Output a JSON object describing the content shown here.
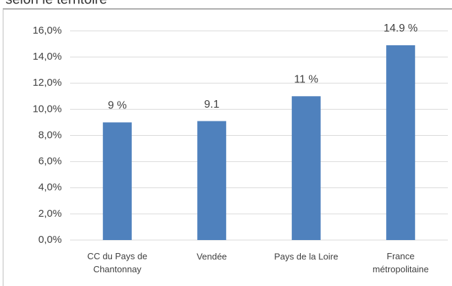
{
  "chart_data": {
    "type": "bar",
    "title": "selon le territoire",
    "categories": [
      "CC du Pays de Chantonnay",
      "Vendée",
      "Pays de la Loire",
      "France métropolitaine"
    ],
    "values": [
      9,
      9.1,
      11,
      14.9
    ],
    "value_labels": [
      "9 %",
      "9.1",
      "11 %",
      "14.9 %"
    ],
    "color": "#4f81bd",
    "ylim": [
      0,
      16
    ],
    "yticks": [
      {
        "value": 0,
        "label": "0,0%"
      },
      {
        "value": 2,
        "label": "2,0%"
      },
      {
        "value": 4,
        "label": "4,0%"
      },
      {
        "value": 6,
        "label": "6,0%"
      },
      {
        "value": 8,
        "label": "8,0%"
      },
      {
        "value": 10,
        "label": "10,0%"
      },
      {
        "value": 12,
        "label": "12,0%"
      },
      {
        "value": 14,
        "label": "14,0%"
      },
      {
        "value": 16,
        "label": "16,0%"
      }
    ],
    "grid": true
  }
}
